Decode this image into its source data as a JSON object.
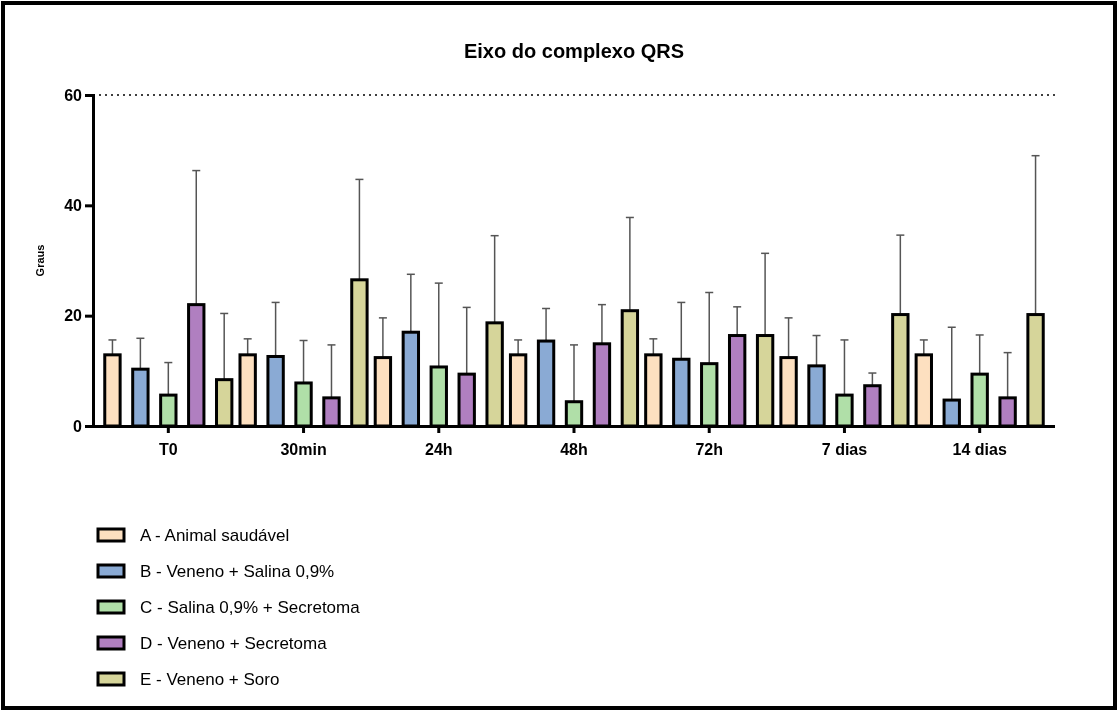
{
  "chart_data": {
    "type": "bar",
    "title": "Eixo do complexo QRS",
    "ylabel": "Graus",
    "categories": [
      "T0",
      "30min",
      "24h",
      "48h",
      "72h",
      "7 dias",
      "14 dias"
    ],
    "series": [
      {
        "name": "A - Animal saudável",
        "color": "#fde0c0",
        "values": [
          12.9,
          12.9,
          12.4,
          12.9,
          12.9,
          12.4,
          12.9
        ],
        "errors": [
          [
            12.9,
            15.6
          ],
          [
            12.9,
            15.8
          ],
          [
            12.4,
            19.6
          ],
          [
            12.9,
            15.6
          ],
          [
            12.9,
            15.8
          ],
          [
            12.4,
            19.6
          ],
          [
            12.9,
            15.6
          ]
        ]
      },
      {
        "name": "B - Veneno + Salina 0,9%",
        "color": "#8aaad4",
        "values": [
          10.3,
          12.6,
          17,
          15.4,
          12.1,
          10.9,
          4.7
        ],
        "errors": [
          [
            10.3,
            15.9
          ],
          [
            12.6,
            22.4
          ],
          [
            17,
            27.5
          ],
          [
            15.4,
            21.3
          ],
          [
            12.1,
            22.4
          ],
          [
            10.9,
            16.4
          ],
          [
            4.7,
            17.9
          ]
        ]
      },
      {
        "name": "C - Salina 0,9% + Secretoma",
        "color": "#b0dfa8",
        "values": [
          5.6,
          7.8,
          10.7,
          4.4,
          11.3,
          5.6,
          9.4
        ],
        "errors": [
          [
            5.6,
            11.5
          ],
          [
            7.8,
            15.5
          ],
          [
            10.7,
            25.9
          ],
          [
            4.4,
            14.7
          ],
          [
            11.3,
            24.2
          ],
          [
            5.6,
            15.6
          ],
          [
            9.4,
            16.5
          ]
        ]
      },
      {
        "name": "D - Veneno + Secretoma",
        "color": "#b07fc0",
        "values": [
          22,
          5.1,
          9.4,
          14.9,
          16.4,
          7.3,
          5.1
        ],
        "errors": [
          [
            22,
            46.3
          ],
          [
            5.1,
            14.7
          ],
          [
            9.4,
            21.5
          ],
          [
            14.9,
            22
          ],
          [
            16.4,
            21.6
          ],
          [
            7.3,
            9.6
          ],
          [
            5.1,
            13.3
          ]
        ]
      },
      {
        "name": "E - Veneno + Soro",
        "color": "#d6d59a",
        "values": [
          8.4,
          26.5,
          18.7,
          20.9,
          16.4,
          20.2,
          20.2
        ],
        "errors": [
          [
            8.4,
            20.4
          ],
          [
            26.5,
            44.7
          ],
          [
            18.7,
            34.5
          ],
          [
            20.9,
            37.8
          ],
          [
            16.4,
            31.3
          ],
          [
            20.2,
            34.6
          ],
          [
            20.2,
            49
          ]
        ]
      }
    ],
    "ylim": [
      0,
      60
    ],
    "yticks": [
      0,
      20,
      40,
      60
    ],
    "ref_lines": [
      {
        "axis": "y",
        "value": 60,
        "line_style": "dotted",
        "color": "#000000"
      }
    ],
    "legend": "bottom left"
  }
}
